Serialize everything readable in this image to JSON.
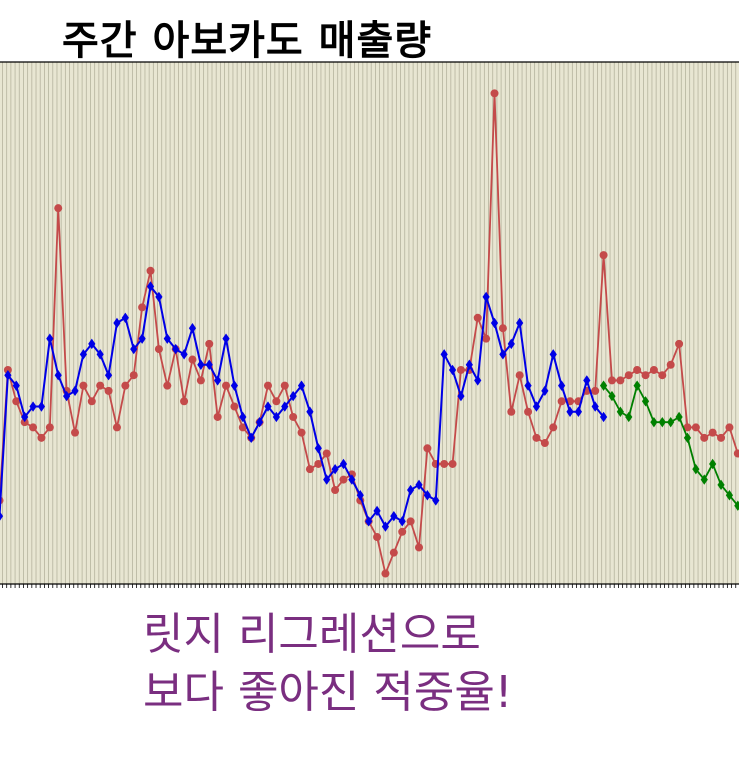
{
  "title": "주간 아보카도 매출량",
  "caption": {
    "line1": "릿지 리그레션으로",
    "line2": "보다 좋아진 적중율!"
  },
  "colors": {
    "background": "#e8e6d2",
    "grid": "#b5b39e",
    "actual": "#c44a4a",
    "fitted": "#0000e6",
    "forecast": "#008000",
    "caption": "#7a2e80"
  },
  "chart_data": {
    "type": "line",
    "title": "주간 아보카도 매출량",
    "xlabel": "",
    "ylabel": "",
    "grid": true,
    "legend": "none",
    "x_start_index": 0,
    "ylim": [
      0,
      100
    ],
    "series": [
      {
        "role": "actual",
        "marker": "circle",
        "values": [
          16,
          41,
          35,
          31,
          30,
          28,
          30,
          72,
          37,
          29,
          38,
          35,
          38,
          37,
          30,
          38,
          40,
          53,
          60,
          45,
          38,
          45,
          35,
          43,
          39,
          46,
          32,
          38,
          34,
          30,
          28,
          31,
          38,
          35,
          38,
          32,
          29,
          22,
          23,
          25,
          18,
          20,
          21,
          16,
          12,
          9,
          2,
          6,
          10,
          12,
          7,
          26,
          23,
          23,
          23,
          41,
          41,
          51,
          47,
          94,
          49,
          33,
          40,
          33,
          28,
          27,
          30,
          35,
          35,
          35,
          37,
          37,
          63,
          39,
          39,
          40,
          41,
          40,
          41,
          40,
          42,
          46,
          30,
          30,
          28,
          29,
          28,
          30,
          25,
          23,
          21,
          20,
          19,
          18
        ]
      },
      {
        "role": "fitted",
        "marker": "diamond",
        "values": [
          13,
          40,
          38,
          32,
          34,
          34,
          47,
          40,
          36,
          37,
          44,
          46,
          44,
          40,
          50,
          51,
          45,
          47,
          57,
          55,
          47,
          45,
          44,
          49,
          42,
          42,
          39,
          47,
          38,
          32,
          28,
          31,
          34,
          32,
          34,
          36,
          38,
          33,
          26,
          20,
          22,
          23,
          20,
          17,
          12,
          14,
          11,
          13,
          12,
          18,
          19,
          17,
          16,
          44,
          41,
          36,
          42,
          39,
          55,
          50,
          44,
          46,
          50,
          38,
          34,
          37,
          44,
          38,
          33,
          33,
          39,
          34,
          32
        ]
      },
      {
        "role": "forecast",
        "marker": "diamond",
        "start_index": 72,
        "values": [
          38,
          36,
          33,
          32,
          38,
          35,
          31,
          31,
          31,
          32,
          28,
          22,
          20,
          23,
          19,
          17,
          15
        ]
      }
    ]
  }
}
